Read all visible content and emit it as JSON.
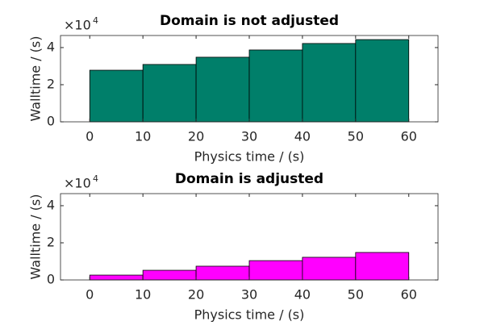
{
  "chart_data": [
    {
      "type": "histogram",
      "title": "Domain is not adjusted",
      "xlabel": "Physics time / (s)",
      "ylabel": "Walltime / (s)",
      "y_multiplier_base": "×10",
      "y_multiplier_exponent": "4",
      "bins": [
        0,
        10,
        20,
        30,
        40,
        50,
        60
      ],
      "values": [
        2.78,
        3.09,
        3.48,
        3.87,
        4.22,
        4.43
      ],
      "color": "#007f6a",
      "xlim": [
        -5.5,
        65.5
      ],
      "xticks": [
        0,
        10,
        20,
        30,
        40,
        50,
        60
      ],
      "ylim": [
        0,
        4.65
      ],
      "yticks": [
        0,
        2,
        4
      ]
    },
    {
      "type": "histogram",
      "title": "Domain is adjusted",
      "xlabel": "Physics time / (s)",
      "ylabel": "Walltime / (s)",
      "y_multiplier_base": "×10",
      "y_multiplier_exponent": "4",
      "bins": [
        0,
        10,
        20,
        30,
        40,
        50,
        60
      ],
      "values": [
        0.26,
        0.52,
        0.74,
        1.04,
        1.22,
        1.48
      ],
      "color": "#ff00ff",
      "xlim": [
        -5.5,
        65.5
      ],
      "xticks": [
        0,
        10,
        20,
        30,
        40,
        50,
        60
      ],
      "ylim": [
        0,
        4.65
      ],
      "yticks": [
        0,
        2,
        4
      ]
    }
  ]
}
